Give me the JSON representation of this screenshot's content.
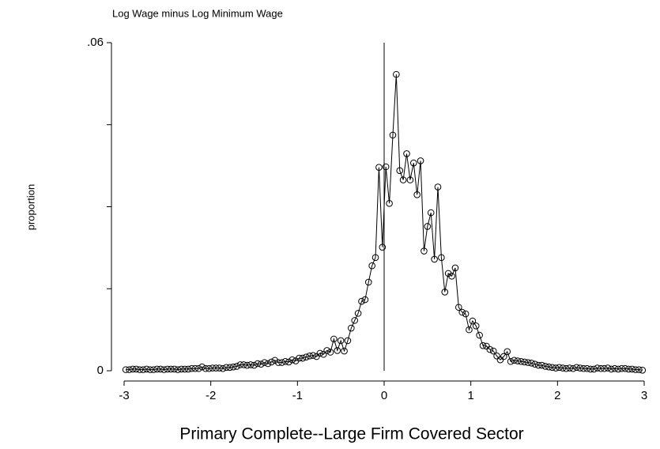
{
  "chart_data": {
    "type": "line",
    "title": "Log Wage minus Log Minimum Wage",
    "xlabel": "Primary Complete--Large Firm Covered Sector",
    "ylabel": "proportion",
    "xlim": [
      -3,
      3
    ],
    "xticks": [
      -3,
      -2,
      -1,
      0,
      1,
      2,
      3
    ],
    "ylim": [
      0,
      0.06
    ],
    "yticks": [
      0,
      {
        "value": 0.06,
        "label": ".06"
      }
    ],
    "yminor_ticks": [
      0.015,
      0.03,
      0.045
    ],
    "vline": 0,
    "color": "#000000",
    "x": [
      -2.98,
      -2.94,
      -2.9,
      -2.86,
      -2.82,
      -2.78,
      -2.74,
      -2.7,
      -2.66,
      -2.62,
      -2.58,
      -2.54,
      -2.5,
      -2.46,
      -2.42,
      -2.38,
      -2.34,
      -2.3,
      -2.26,
      -2.22,
      -2.18,
      -2.14,
      -2.1,
      -2.06,
      -2.02,
      -1.98,
      -1.94,
      -1.9,
      -1.86,
      -1.82,
      -1.78,
      -1.74,
      -1.7,
      -1.66,
      -1.62,
      -1.58,
      -1.54,
      -1.5,
      -1.46,
      -1.42,
      -1.38,
      -1.34,
      -1.3,
      -1.26,
      -1.22,
      -1.18,
      -1.14,
      -1.1,
      -1.06,
      -1.02,
      -0.98,
      -0.94,
      -0.9,
      -0.86,
      -0.82,
      -0.78,
      -0.74,
      -0.7,
      -0.66,
      -0.62,
      -0.58,
      -0.54,
      -0.5,
      -0.46,
      -0.42,
      -0.38,
      -0.34,
      -0.3,
      -0.26,
      -0.22,
      -0.18,
      -0.14,
      -0.1,
      -0.06,
      -0.02,
      0.02,
      0.06,
      0.1,
      0.14,
      0.18,
      0.22,
      0.26,
      0.3,
      0.34,
      0.38,
      0.42,
      0.46,
      0.5,
      0.54,
      0.58,
      0.62,
      0.66,
      0.7,
      0.74,
      0.78,
      0.82,
      0.86,
      0.9,
      0.94,
      0.98,
      1.02,
      1.06,
      1.1,
      1.14,
      1.18,
      1.22,
      1.26,
      1.3,
      1.34,
      1.38,
      1.42,
      1.46,
      1.5,
      1.54,
      1.58,
      1.62,
      1.66,
      1.7,
      1.74,
      1.78,
      1.82,
      1.86,
      1.9,
      1.94,
      1.98,
      2.02,
      2.06,
      2.1,
      2.14,
      2.18,
      2.22,
      2.26,
      2.3,
      2.34,
      2.38,
      2.42,
      2.46,
      2.5,
      2.54,
      2.58,
      2.62,
      2.66,
      2.7,
      2.74,
      2.78,
      2.82,
      2.86,
      2.9,
      2.94,
      2.98
    ],
    "values": [
      0.0002,
      0.0002,
      0.0003,
      0.0003,
      0.0002,
      0.0002,
      0.0003,
      0.0002,
      0.0002,
      0.0003,
      0.0003,
      0.0002,
      0.0003,
      0.0003,
      0.0003,
      0.0002,
      0.0003,
      0.0003,
      0.0003,
      0.0004,
      0.0004,
      0.0004,
      0.0007,
      0.0004,
      0.0004,
      0.0005,
      0.0005,
      0.0005,
      0.0004,
      0.0006,
      0.0006,
      0.0007,
      0.0008,
      0.0011,
      0.0011,
      0.001,
      0.0011,
      0.001,
      0.0013,
      0.0012,
      0.0015,
      0.0013,
      0.0016,
      0.0019,
      0.0015,
      0.0015,
      0.0017,
      0.0016,
      0.002,
      0.0018,
      0.0023,
      0.0023,
      0.0025,
      0.0027,
      0.0028,
      0.0026,
      0.0032,
      0.003,
      0.0037,
      0.0034,
      0.0058,
      0.0037,
      0.0055,
      0.0036,
      0.0055,
      0.0078,
      0.0092,
      0.0105,
      0.0127,
      0.013,
      0.0162,
      0.0192,
      0.0207,
      0.0372,
      0.0226,
      0.0373,
      0.0306,
      0.0431,
      0.0542,
      0.0366,
      0.0349,
      0.0397,
      0.0349,
      0.038,
      0.0322,
      0.0384,
      0.0219,
      0.0264,
      0.0289,
      0.0204,
      0.0336,
      0.0207,
      0.0144,
      0.0178,
      0.0173,
      0.0188,
      0.0116,
      0.0107,
      0.0104,
      0.0075,
      0.0091,
      0.0082,
      0.0065,
      0.0046,
      0.0045,
      0.0039,
      0.0036,
      0.0027,
      0.002,
      0.0026,
      0.0035,
      0.0017,
      0.0019,
      0.0018,
      0.0017,
      0.0016,
      0.0015,
      0.0014,
      0.0012,
      0.001,
      0.001,
      0.0008,
      0.0007,
      0.0006,
      0.0005,
      0.0006,
      0.0005,
      0.0004,
      0.0005,
      0.0004,
      0.0006,
      0.0005,
      0.0004,
      0.0004,
      0.0003,
      0.0003,
      0.0005,
      0.0004,
      0.0004,
      0.0005,
      0.0003,
      0.0004,
      0.0003,
      0.0004,
      0.0004,
      0.0003,
      0.0003,
      0.0002,
      0.0002,
      0.0001
    ]
  }
}
